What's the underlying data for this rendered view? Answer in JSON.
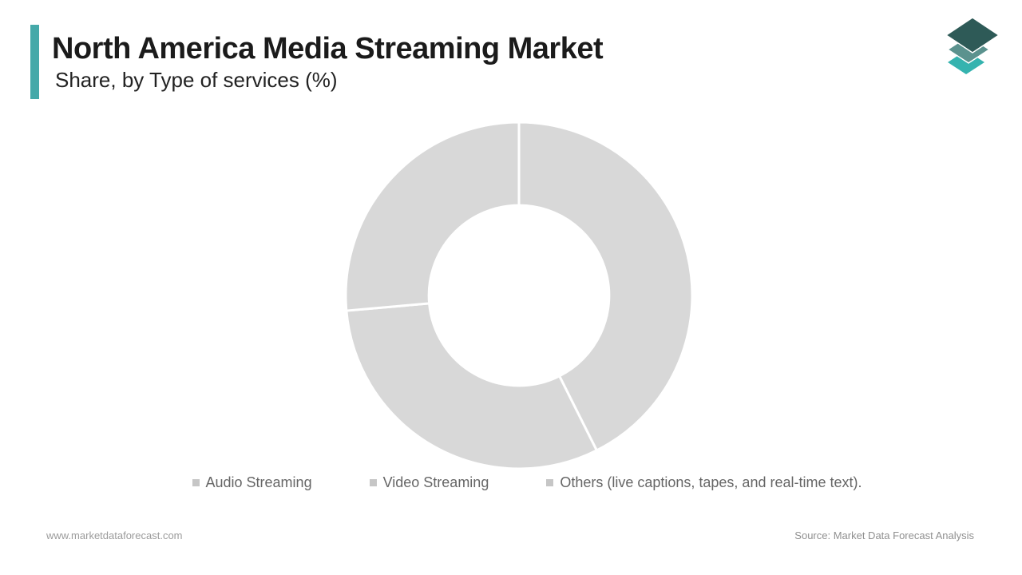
{
  "header": {
    "title": "North America Media Streaming Market",
    "subtitle": "Share, by Type of services (%)"
  },
  "brand": {
    "logo_icon": "layered-diamonds-logo",
    "logo_colors": {
      "top": "#2e5a57",
      "middle": "#5b928e",
      "bottom": "#35b3af"
    },
    "accent_color": "#45a9a9"
  },
  "chart_data": {
    "type": "pie",
    "subtype": "donut",
    "title": "North America Media Streaming Market Share, by Type of services (%)",
    "unit": "%",
    "start_angle_deg": 0,
    "direction": "clockwise",
    "inner_radius_ratio": 0.52,
    "segment_fill": "#d8d8d8",
    "separator_color": "#ffffff",
    "legend_position": "bottom",
    "segments": [
      {
        "label": "Audio Streaming",
        "value": 42.6,
        "color": "#d8d8d8"
      },
      {
        "label": "Video Streaming",
        "value": 31.0,
        "color": "#d8d8d8"
      },
      {
        "label": "Others (live captions, tapes, and real-time text).",
        "value": 26.4,
        "color": "#d8d8d8"
      }
    ]
  },
  "legend": {
    "marker_color": "#c6c6c6"
  },
  "footer": {
    "left": "www.marketdataforecast.com",
    "right": "Source: Market Data Forecast Analysis"
  }
}
